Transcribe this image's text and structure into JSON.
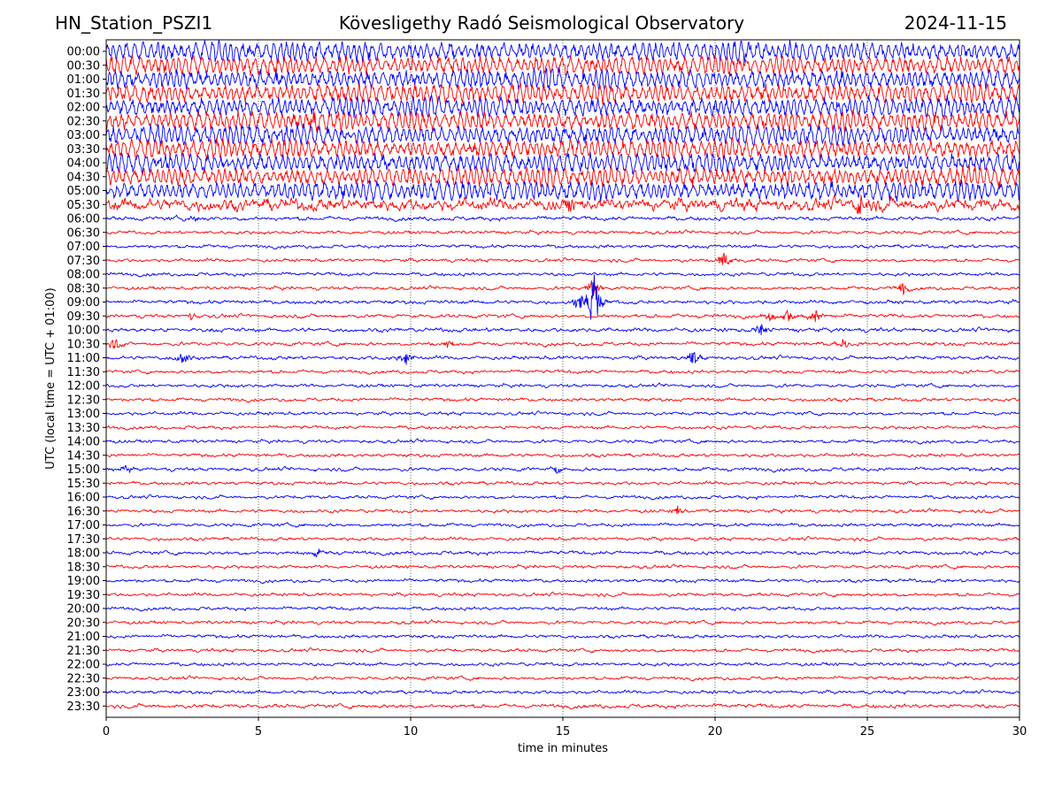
{
  "header": {
    "station": "HN_Station_PSZI1",
    "observatory": "Kövesligethy Radó Seismological Observatory",
    "date": "2024-11-15"
  },
  "chart_data": {
    "type": "line",
    "chart_kind": "seismic helicorder",
    "xlabel": "time in minutes",
    "ylabel": "UTC (local time = UTC + 01:00)",
    "xlim": [
      0,
      30
    ],
    "x_ticks": [
      0,
      5,
      10,
      15,
      20,
      25,
      30
    ],
    "row_labels": [
      "00:00",
      "00:30",
      "01:00",
      "01:30",
      "02:00",
      "02:30",
      "03:00",
      "03:30",
      "04:00",
      "04:30",
      "05:00",
      "05:30",
      "06:00",
      "06:30",
      "07:00",
      "07:30",
      "08:00",
      "08:30",
      "09:00",
      "09:30",
      "10:00",
      "10:30",
      "11:00",
      "11:30",
      "12:00",
      "12:30",
      "13:00",
      "13:30",
      "14:00",
      "14:30",
      "15:00",
      "15:30",
      "16:00",
      "16:30",
      "17:00",
      "17:30",
      "18:00",
      "18:30",
      "19:00",
      "19:30",
      "20:00",
      "20:30",
      "21:00",
      "21:30",
      "22:00",
      "22:30",
      "23:00",
      "23:30"
    ],
    "row_colors": [
      "#0000ff",
      "#ff0000"
    ],
    "grid": "vertical dotted at x ticks",
    "trace_noise": [
      9,
      9,
      9,
      9,
      9,
      9,
      9,
      9,
      9,
      9,
      9,
      4,
      1.3,
      1.1,
      1.1,
      1.1,
      1.1,
      1.1,
      1.2,
      1.2,
      1.3,
      1.2,
      1.2,
      1.1,
      1.1,
      1.1,
      1.1,
      1.1,
      1.1,
      1.1,
      1.2,
      1.1,
      1.1,
      1.1,
      1.1,
      1.1,
      1.2,
      1.1,
      1.1,
      1.1,
      1.1,
      1.1,
      1.1,
      1.1,
      1.1,
      1.1,
      1.1,
      1.3
    ],
    "events": [
      {
        "row": 5,
        "minute": 6.8,
        "amplitude": 6
      },
      {
        "row": 11,
        "minute": 15.2,
        "amplitude": 7
      },
      {
        "row": 11,
        "minute": 24.8,
        "amplitude": 9
      },
      {
        "row": 12,
        "minute": 2.9,
        "amplitude": 3
      },
      {
        "row": 15,
        "minute": 20.3,
        "amplitude": 9
      },
      {
        "row": 17,
        "minute": 16.0,
        "amplitude": 10
      },
      {
        "row": 17,
        "minute": 26.2,
        "amplitude": 6
      },
      {
        "row": 18,
        "minute": 16.0,
        "amplitude": 32
      },
      {
        "row": 18,
        "minute": 15.6,
        "amplitude": 12
      },
      {
        "row": 19,
        "minute": 21.8,
        "amplitude": 5
      },
      {
        "row": 19,
        "minute": 22.4,
        "amplitude": 6
      },
      {
        "row": 19,
        "minute": 23.3,
        "amplitude": 6
      },
      {
        "row": 19,
        "minute": 2.8,
        "amplitude": 3
      },
      {
        "row": 20,
        "minute": 21.5,
        "amplitude": 7
      },
      {
        "row": 21,
        "minute": 0.3,
        "amplitude": 6
      },
      {
        "row": 21,
        "minute": 24.2,
        "amplitude": 6
      },
      {
        "row": 21,
        "minute": 11.2,
        "amplitude": 4
      },
      {
        "row": 22,
        "minute": 2.5,
        "amplitude": 8
      },
      {
        "row": 22,
        "minute": 9.8,
        "amplitude": 7
      },
      {
        "row": 22,
        "minute": 19.3,
        "amplitude": 7
      },
      {
        "row": 30,
        "minute": 0.6,
        "amplitude": 4
      },
      {
        "row": 30,
        "minute": 14.8,
        "amplitude": 3
      },
      {
        "row": 33,
        "minute": 18.8,
        "amplitude": 5
      },
      {
        "row": 36,
        "minute": 6.9,
        "amplitude": 4
      }
    ]
  }
}
